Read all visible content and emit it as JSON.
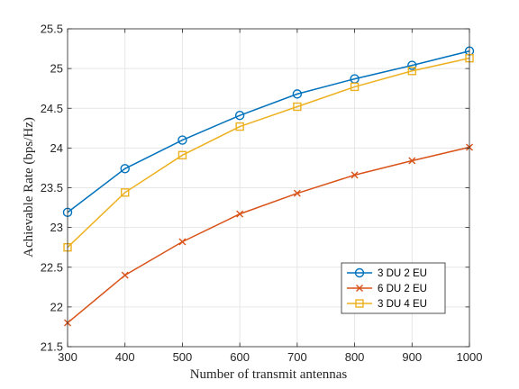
{
  "chart_data": {
    "type": "line",
    "xlabel": "Number of transmit antennas",
    "ylabel": "Achievable Rate (bps/Hz)",
    "x": [
      300,
      400,
      500,
      600,
      700,
      800,
      900,
      1000
    ],
    "xlim": [
      300,
      1000
    ],
    "ylim": [
      21.5,
      25.5
    ],
    "xticks": [
      300,
      400,
      500,
      600,
      700,
      800,
      900,
      1000
    ],
    "yticks": [
      21.5,
      22,
      22.5,
      23,
      23.5,
      24,
      24.5,
      25,
      25.5
    ],
    "xtick_labels": [
      "300",
      "400",
      "500",
      "600",
      "700",
      "800",
      "900",
      "1000"
    ],
    "ytick_labels": [
      "21.5",
      "22",
      "22.5",
      "23",
      "23.5",
      "24",
      "24.5",
      "25",
      "25.5"
    ],
    "grid": true,
    "legend_position": "lower-right",
    "series": [
      {
        "name": "3 DU 2 EU",
        "marker": "circle",
        "color": "#0072BD",
        "values": [
          23.19,
          23.74,
          24.1,
          24.41,
          24.68,
          24.87,
          25.04,
          25.22
        ]
      },
      {
        "name": "6 DU 2 EU",
        "marker": "x",
        "color": "#D95319",
        "values": [
          21.8,
          22.4,
          22.82,
          23.17,
          23.43,
          23.66,
          23.84,
          24.01
        ]
      },
      {
        "name": "3 DU 4 EU",
        "marker": "square",
        "color": "#EDB120",
        "values": [
          22.75,
          23.44,
          23.91,
          24.27,
          24.52,
          24.77,
          24.97,
          25.13
        ]
      }
    ]
  }
}
